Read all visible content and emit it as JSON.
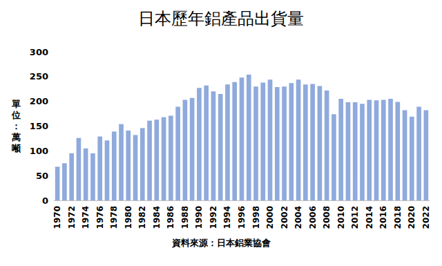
{
  "chart_data": {
    "type": "bar",
    "title": "日本歷年鋁產品出貨量",
    "y_label": "單位：萬噸",
    "annotation": "資料來源：日本鋁業協會",
    "categories": [
      "1970",
      null,
      "1972",
      null,
      "1974",
      null,
      "1976",
      null,
      "1978",
      null,
      "1980",
      null,
      "1982",
      null,
      "1984",
      null,
      "1986",
      null,
      "1988",
      null,
      "1990",
      null,
      "1992",
      null,
      "1994",
      null,
      "1996",
      null,
      "1998",
      null,
      "2000",
      null,
      "2002",
      null,
      "2004",
      null,
      "2006",
      null,
      "2008",
      null,
      "2010",
      null,
      "2012",
      null,
      "2014",
      null,
      "2016",
      null,
      "2018",
      null,
      "2020",
      null,
      "2022"
    ],
    "values": [
      68,
      75,
      95,
      126,
      105,
      95,
      129,
      121,
      139,
      154,
      141,
      132,
      146,
      161,
      163,
      168,
      171,
      189,
      203,
      207,
      227,
      232,
      220,
      215,
      234,
      239,
      248,
      254,
      230,
      238,
      244,
      229,
      230,
      237,
      244,
      234,
      235,
      231,
      222,
      174,
      205,
      198,
      198,
      195,
      203,
      202,
      203,
      205,
      199,
      182,
      169,
      189,
      182
    ],
    "color": "#8faadc",
    "ylim": [
      0,
      300
    ],
    "yticks": [
      0,
      50,
      100,
      150,
      200,
      250,
      300
    ],
    "grid": false
  }
}
